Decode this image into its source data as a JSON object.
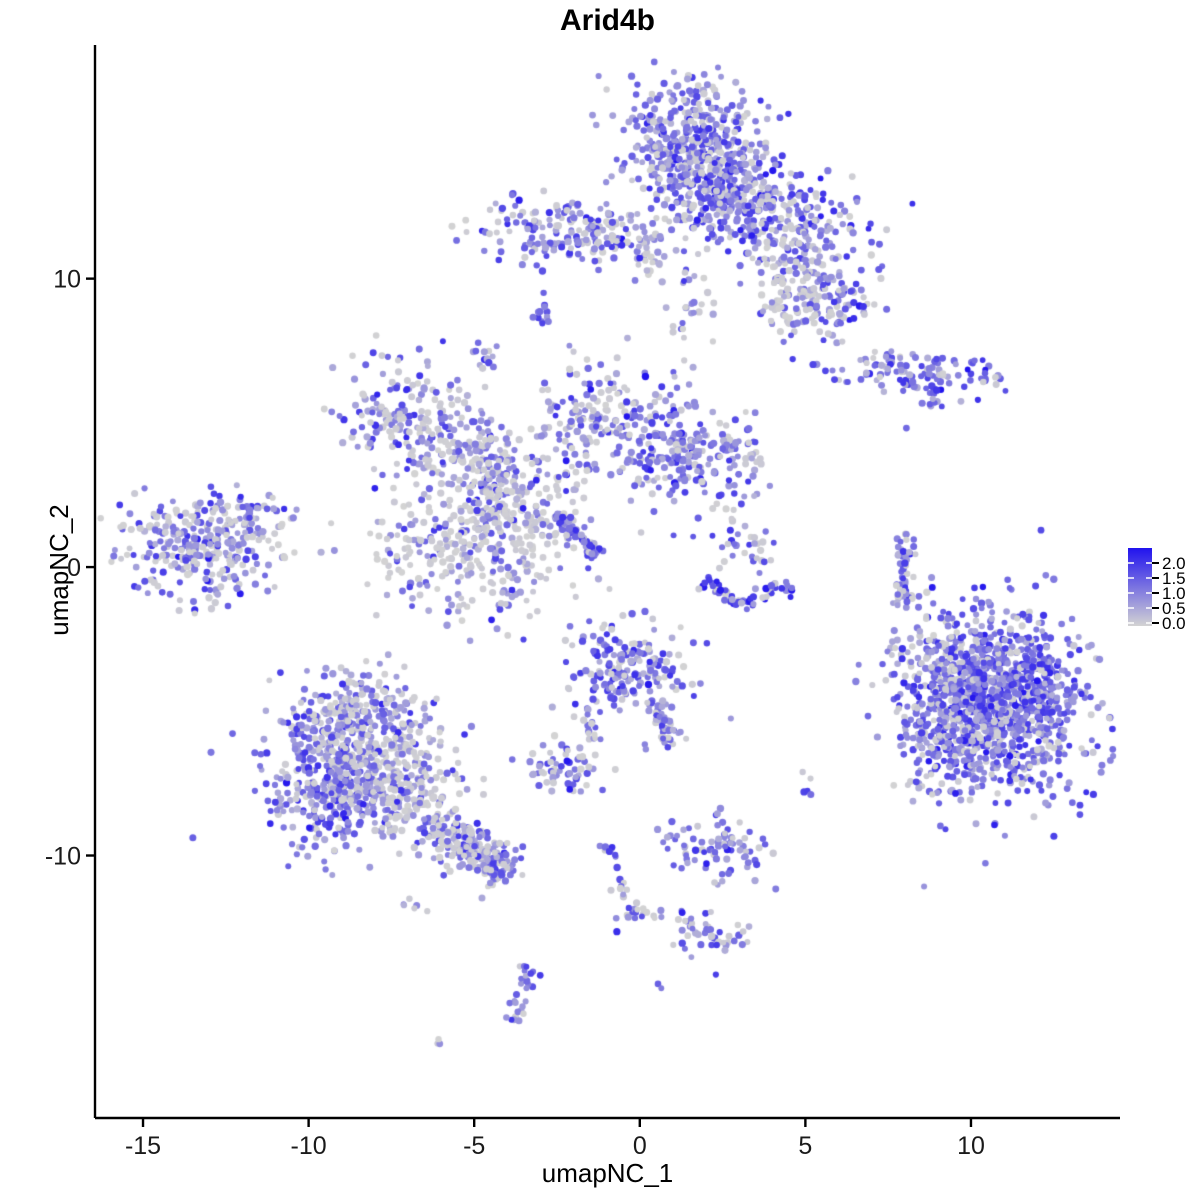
{
  "title": "Arid4b",
  "axes": {
    "x": {
      "label": "umapNC_1",
      "ticks": [
        -15,
        -10,
        -5,
        0,
        5,
        10
      ]
    },
    "y": {
      "label": "umapNC_2",
      "ticks": [
        10,
        0,
        -10
      ]
    }
  },
  "legend": {
    "labels": [
      "2.0",
      "1.5",
      "1.0",
      "0.5",
      "0.0"
    ],
    "color_low": "#D3D3D3",
    "color_high": "#2113EE"
  },
  "chart_data": {
    "type": "scatter",
    "title": "Arid4b",
    "xlabel": "umapNC_1",
    "ylabel": "umapNC_2",
    "xlim": [
      -16.45,
      14.5
    ],
    "ylim": [
      -19.1,
      18.1
    ],
    "grid": false,
    "legend_position": "right",
    "point_radius_px": 3.3,
    "color_scale": {
      "low": "#D3D3D3",
      "high": "#2113EE",
      "value_min": 0.0,
      "value_max": 2.5
    },
    "expression_bins": [
      [
        0,
        0.06
      ],
      [
        0.16,
        0.38
      ],
      [
        0.38,
        0.62
      ],
      [
        0.62,
        0.85
      ],
      [
        0.85,
        1.0
      ]
    ],
    "profiles": {
      "mixed": [
        0.4,
        0.24,
        0.22,
        0.12,
        0.02
      ],
      "greyish": [
        0.62,
        0.2,
        0.12,
        0.05,
        0.01
      ],
      "purple": [
        0.22,
        0.26,
        0.32,
        0.17,
        0.03
      ],
      "hot": [
        0.14,
        0.2,
        0.36,
        0.26,
        0.04
      ],
      "streak": [
        0.06,
        0.2,
        0.48,
        0.26,
        0.0
      ],
      "arc": [
        0.28,
        0.1,
        0.18,
        0.29,
        0.15
      ]
    },
    "clusters": [
      [
        1.55,
        14.7,
        1.05,
        1.15,
        0,
        400,
        "purple"
      ],
      [
        2.45,
        13.2,
        1.05,
        0.75,
        -25,
        230,
        "purple"
      ],
      [
        1.3,
        9.8,
        0.45,
        1.2,
        0,
        38,
        "greyish"
      ],
      [
        4.4,
        12.0,
        1.3,
        0.85,
        -10,
        230,
        "purple"
      ],
      [
        5.55,
        9.35,
        0.75,
        0.8,
        0,
        130,
        "mixed"
      ],
      [
        4.4,
        10.3,
        0.55,
        0.9,
        10,
        55,
        "greyish"
      ],
      [
        -2.3,
        11.6,
        1.3,
        0.6,
        -4,
        175,
        "purple"
      ],
      [
        -0.45,
        11.5,
        0.55,
        0.3,
        0,
        25,
        "greyish"
      ],
      [
        -2.95,
        8.75,
        0.18,
        0.32,
        0,
        12,
        "streak"
      ],
      [
        -4.7,
        7.35,
        0.22,
        0.35,
        0,
        14,
        "streak"
      ],
      [
        8.3,
        6.7,
        1.35,
        0.34,
        -4,
        105,
        "hot"
      ],
      [
        -6.7,
        5.0,
        1.35,
        0.85,
        -28,
        230,
        "mixed"
      ],
      [
        -4.9,
        3.65,
        0.8,
        0.5,
        -15,
        70,
        "greyish"
      ],
      [
        -5.25,
        0.55,
        1.45,
        1.25,
        0,
        300,
        "greyish"
      ],
      [
        -4.35,
        2.7,
        0.5,
        1.3,
        12,
        100,
        "mixed"
      ],
      [
        -1.45,
        5.0,
        0.85,
        1.15,
        -28,
        150,
        "mixed"
      ],
      [
        1.35,
        3.95,
        1.3,
        0.9,
        -22,
        270,
        "purple"
      ],
      [
        -3.3,
        2.1,
        0.8,
        0.8,
        0,
        60,
        "greyish"
      ],
      [
        -13.3,
        0.75,
        1.25,
        0.95,
        -8,
        290,
        "mixed"
      ],
      [
        -11.7,
        1.95,
        0.6,
        0.35,
        -20,
        40,
        "purple"
      ],
      [
        3.2,
        0.5,
        0.45,
        0.45,
        0,
        28,
        "mixed"
      ],
      [
        10.75,
        -4.75,
        1.35,
        1.55,
        10,
        1150,
        "hot"
      ],
      [
        9.2,
        -4.4,
        0.85,
        1.6,
        0,
        240,
        "mixed"
      ],
      [
        -0.35,
        -3.5,
        0.95,
        0.8,
        0,
        190,
        "purple"
      ],
      [
        -2.2,
        -7.05,
        0.6,
        0.45,
        -10,
        60,
        "mixed"
      ],
      [
        -8.6,
        -5.3,
        1.05,
        0.75,
        10,
        250,
        "mixed"
      ],
      [
        -9.35,
        -7.5,
        1.05,
        1.15,
        0,
        370,
        "purple"
      ],
      [
        -7.3,
        -7.3,
        1.0,
        1.05,
        0,
        250,
        "greyish"
      ],
      [
        2.25,
        -9.85,
        0.8,
        0.5,
        -8,
        85,
        "purple"
      ],
      [
        2.1,
        -12.75,
        0.55,
        0.4,
        -10,
        48,
        "mixed"
      ],
      [
        5.1,
        -7.5,
        0.12,
        0.35,
        0,
        5,
        "purple"
      ],
      [
        -4.3,
        -10.3,
        0.45,
        0.3,
        -25,
        45,
        "purple"
      ]
    ],
    "segments": [
      [
        -2.55,
        1.8,
        -1.2,
        0.35,
        0.12,
        68,
        "streak"
      ],
      [
        8.1,
        1.2,
        7.85,
        -1.5,
        0.14,
        52,
        "purple"
      ],
      [
        1.95,
        -0.5,
        3.1,
        -1.3,
        0.16,
        30,
        "arc"
      ],
      [
        3.1,
        -1.3,
        4.55,
        -0.6,
        0.16,
        30,
        "arc"
      ],
      [
        0.35,
        -4.55,
        1.15,
        -6.1,
        0.2,
        45,
        "purple"
      ],
      [
        -1.55,
        -4.9,
        -1.35,
        -6.1,
        0.15,
        14,
        "greyish"
      ],
      [
        -6.55,
        -8.9,
        -4.0,
        -10.5,
        0.45,
        170,
        "mixed"
      ],
      [
        -1.05,
        -9.6,
        -0.6,
        -11.0,
        0.12,
        12,
        "purple"
      ],
      [
        -0.6,
        -11.0,
        -0.1,
        -11.9,
        0.12,
        9,
        "mixed"
      ],
      [
        -0.1,
        -11.9,
        -0.75,
        -12.6,
        0.12,
        9,
        "purple"
      ],
      [
        -0.05,
        -11.85,
        0.75,
        -12.2,
        0.1,
        7,
        "greyish"
      ],
      [
        -3.25,
        -13.9,
        -3.55,
        -14.9,
        0.16,
        16,
        "purple"
      ],
      [
        -3.55,
        -14.9,
        -3.85,
        -15.75,
        0.16,
        13,
        "purple"
      ],
      [
        9.0,
        6.25,
        8.7,
        5.45,
        0.18,
        16,
        "purple"
      ],
      [
        -6.15,
        -16.3,
        -5.95,
        -16.55,
        0.1,
        3,
        "purple"
      ],
      [
        -7.3,
        -11.65,
        -6.3,
        -12.0,
        0.1,
        6,
        "greyish"
      ],
      [
        -0.15,
        10.9,
        0.6,
        10.4,
        0.3,
        18,
        "greyish"
      ],
      [
        3.9,
        9.2,
        4.6,
        8.35,
        0.2,
        14,
        "mixed"
      ]
    ],
    "singles": [
      [
        9.9,
        6.85,
        1.0
      ],
      [
        8.05,
        4.82,
        0.55
      ],
      [
        2.4,
        2.47,
        0.75
      ],
      [
        2.8,
        1.6,
        0.05
      ],
      [
        2.75,
        -5.25,
        0.3
      ],
      [
        0.55,
        -14.45,
        0.6
      ],
      [
        0.65,
        -14.6,
        0.45
      ],
      [
        2.5,
        -8.85,
        0.5
      ],
      [
        2.35,
        -8.95,
        0.4
      ],
      [
        1.05,
        6.6,
        0.1
      ]
    ]
  }
}
